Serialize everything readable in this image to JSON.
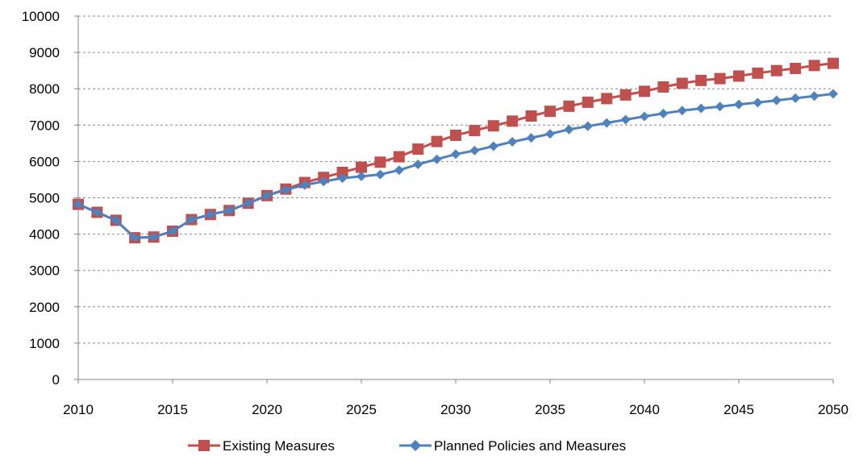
{
  "chart_data": {
    "type": "line",
    "title": "",
    "xlabel": "",
    "ylabel": "",
    "xlim": [
      2010,
      2050
    ],
    "ylim": [
      0,
      10000
    ],
    "x_ticks": [
      2010,
      2015,
      2020,
      2025,
      2030,
      2035,
      2040,
      2045,
      2050
    ],
    "y_ticks": [
      0,
      1000,
      2000,
      3000,
      4000,
      5000,
      6000,
      7000,
      8000,
      9000,
      10000
    ],
    "grid": "horizontal dashed",
    "legend_position": "bottom",
    "x": [
      2010,
      2011,
      2012,
      2013,
      2014,
      2015,
      2016,
      2017,
      2018,
      2019,
      2020,
      2021,
      2022,
      2023,
      2024,
      2025,
      2026,
      2027,
      2028,
      2029,
      2030,
      2031,
      2032,
      2033,
      2034,
      2035,
      2036,
      2037,
      2038,
      2039,
      2040,
      2041,
      2042,
      2043,
      2044,
      2045,
      2046,
      2047,
      2048,
      2049,
      2050
    ],
    "series": [
      {
        "name": "Existing Measures",
        "color": "#c0504d",
        "marker": "square",
        "values": [
          4820,
          4600,
          4380,
          3900,
          3920,
          4080,
          4400,
          4540,
          4650,
          4850,
          5060,
          5240,
          5420,
          5560,
          5700,
          5840,
          5980,
          6130,
          6340,
          6550,
          6720,
          6850,
          6980,
          7110,
          7250,
          7380,
          7520,
          7630,
          7730,
          7830,
          7930,
          8050,
          8150,
          8230,
          8280,
          8350,
          8430,
          8500,
          8560,
          8640,
          8700
        ]
      },
      {
        "name": "Planned Policies and Measures",
        "color": "#4f81bd",
        "marker": "diamond",
        "values": [
          4820,
          4600,
          4380,
          3900,
          3920,
          4080,
          4400,
          4540,
          4650,
          4850,
          5060,
          5220,
          5350,
          5450,
          5540,
          5590,
          5640,
          5760,
          5920,
          6060,
          6200,
          6300,
          6420,
          6540,
          6650,
          6760,
          6880,
          6970,
          7060,
          7150,
          7240,
          7320,
          7400,
          7460,
          7510,
          7570,
          7620,
          7680,
          7740,
          7800,
          7860
        ]
      }
    ]
  }
}
